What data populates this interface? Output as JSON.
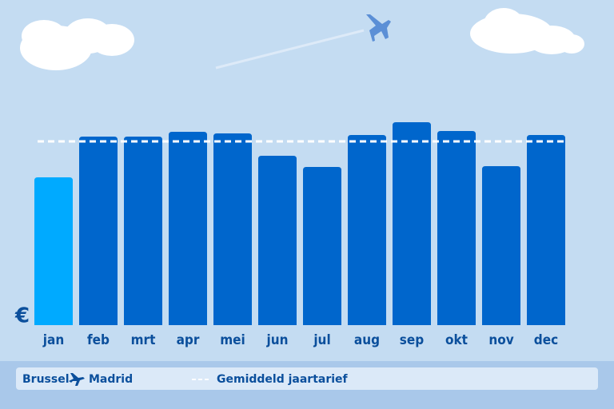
{
  "chart_data": {
    "type": "bar",
    "currency": "€",
    "categories": [
      "jan",
      "feb",
      "mrt",
      "apr",
      "mei",
      "jun",
      "jul",
      "aug",
      "sep",
      "okt",
      "nov",
      "dec"
    ],
    "values": [
      185,
      236,
      236,
      242,
      240,
      212,
      198,
      238,
      254,
      243,
      199,
      238
    ],
    "colors": [
      "#00aaff",
      "#0066cc",
      "#0066cc",
      "#0066cc",
      "#0066cc",
      "#0066cc",
      "#0066cc",
      "#0066cc",
      "#0066cc",
      "#0066cc",
      "#0066cc",
      "#0066cc"
    ],
    "ylim": [
      0,
      260
    ],
    "average": 230,
    "average_label": "Gemiddeld jaartarief",
    "origin": "Brussel",
    "destination": "Madrid"
  }
}
